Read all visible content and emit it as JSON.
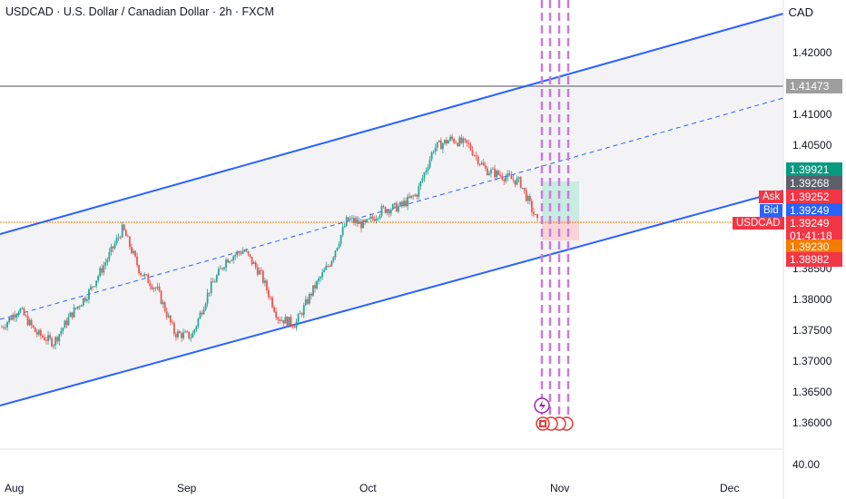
{
  "header": {
    "title": "USDCAD · U.S. Dollar / Canadian Dollar · 2h · FXCM",
    "currency": "CAD"
  },
  "price_axis": {
    "ticks": [
      "1.42000",
      "1.41000",
      "1.40500",
      "1.38500",
      "1.38000",
      "1.37500",
      "1.37000",
      "1.36500",
      "1.36000",
      "40.00"
    ]
  },
  "time_axis": {
    "labels": [
      "Aug",
      "Sep",
      "Oct",
      "Nov",
      "Dec"
    ]
  },
  "price_labels": {
    "horizontal_line": "1.41473",
    "target_high": "1.39921",
    "avg": "1.39268",
    "ask": "1.39252",
    "bid": "1.39249",
    "last": "1.39249",
    "countdown": "01:41:18",
    "entry": "1.39230",
    "stop": "1.38982"
  },
  "tags": {
    "ask": "Ask",
    "bid": "Bid",
    "symbol": "USDCAD"
  },
  "colors": {
    "channel": "#2962ff",
    "up_candle": "#26a69a",
    "down_candle": "#ef5350",
    "price_line": "#f57c00",
    "event_lines": "#c77dd8"
  },
  "chart_data": {
    "type": "candlestick",
    "symbol": "USDCAD",
    "timeframe": "2h",
    "x_labels": [
      "Aug",
      "Sep",
      "Oct",
      "Nov",
      "Dec"
    ],
    "close_path_approx": [
      1.3755,
      1.3785,
      1.3745,
      1.373,
      1.3775,
      1.381,
      1.386,
      1.3915,
      1.3845,
      1.3815,
      1.3745,
      1.374,
      1.3815,
      1.3865,
      1.388,
      1.384,
      1.377,
      1.376,
      1.3815,
      1.386,
      1.393,
      1.392,
      1.3945,
      1.395,
      1.397,
      1.4045,
      1.406,
      1.405,
      1.401,
      1.4,
      1.399,
      1.3925
    ],
    "horizontal_level": 1.41473,
    "current_price": 1.39249,
    "ylim": [
      1.3575,
      1.4285
    ]
  }
}
